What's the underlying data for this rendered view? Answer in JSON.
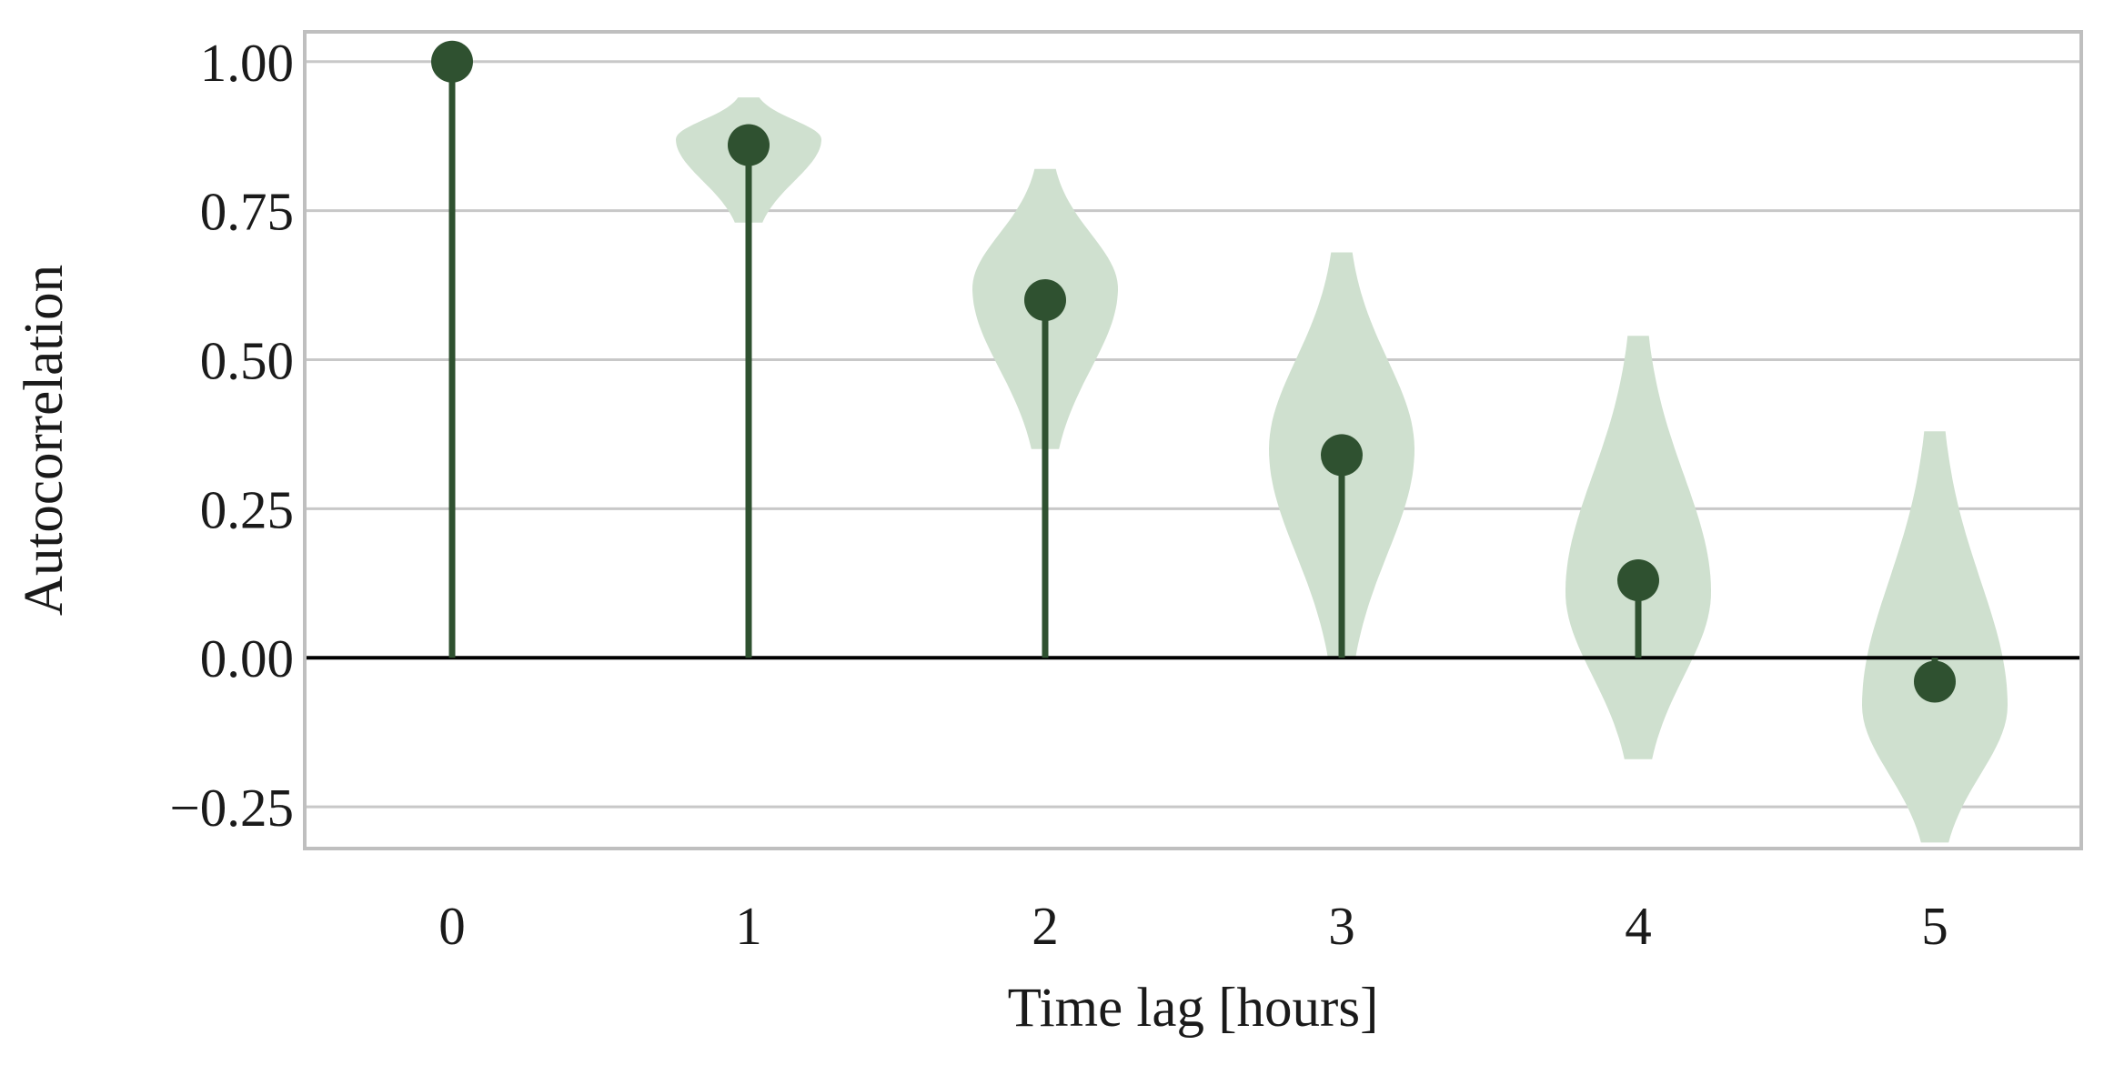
{
  "chart_data": {
    "type": "stem-violin",
    "xlabel": "Time lag [hours]",
    "ylabel": "Autocorrelation",
    "x": [
      0,
      1,
      2,
      3,
      4,
      5
    ],
    "x_tick_labels": [
      "0",
      "1",
      "2",
      "3",
      "4",
      "5"
    ],
    "ylim": [
      -0.32,
      1.05
    ],
    "y_ticks": [
      -0.25,
      0.0,
      0.25,
      0.5,
      0.75,
      1.0
    ],
    "y_tick_labels": [
      "−0.25",
      "0.00",
      "0.25",
      "0.50",
      "0.75",
      "1.00"
    ],
    "values": [
      1.0,
      0.86,
      0.6,
      0.34,
      0.13,
      -0.04
    ],
    "distributions": [
      null,
      {
        "min": 0.73,
        "max": 0.94,
        "mode": 0.87
      },
      {
        "min": 0.35,
        "max": 0.82,
        "mode": 0.62
      },
      {
        "min": 0.0,
        "max": 0.68,
        "mode": 0.35
      },
      {
        "min": -0.17,
        "max": 0.54,
        "mode": 0.11
      },
      {
        "min": -0.31,
        "max": 0.38,
        "mode": -0.08
      }
    ],
    "grid": true,
    "colors": {
      "stem": "#2f5130",
      "marker": "#2f5130",
      "violin": "#cfe0cf",
      "grid": "#c8c8c8",
      "frame": "#bfbfbf",
      "zero_line": "#000000"
    }
  }
}
